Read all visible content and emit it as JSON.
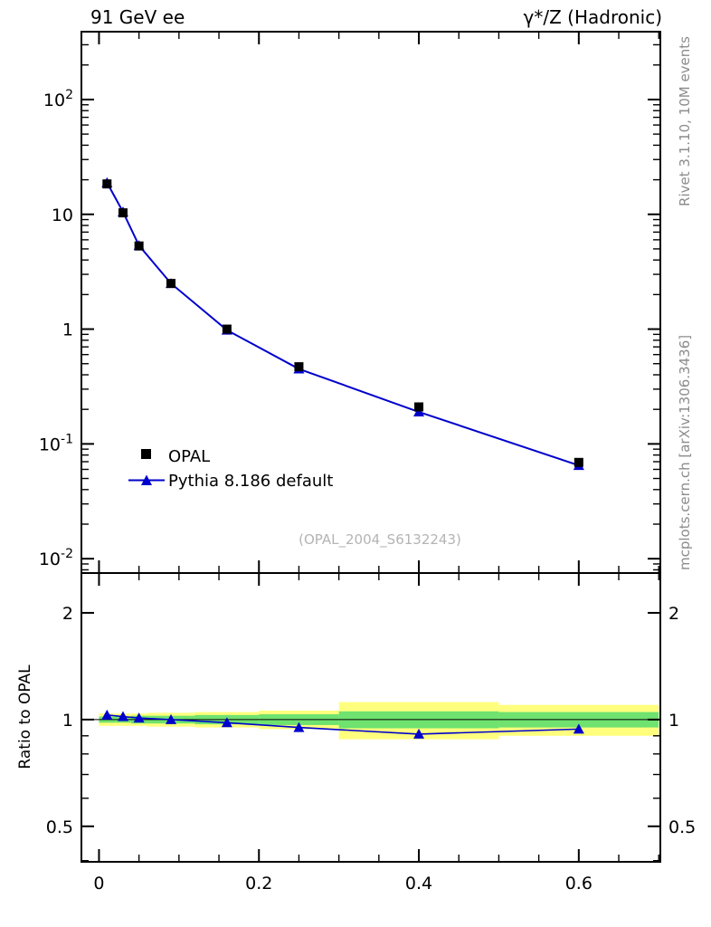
{
  "annotations": {
    "right_top": "Rivet 3.1.10,  10M events",
    "right_bottom": "mcplots.cern.ch [arXiv:1306.3436]"
  },
  "chart_data": {
    "type": "line",
    "title_left": "91 GeV ee",
    "title_right": "γ*/Z (Hadronic)",
    "watermark": "(OPAL_2004_S6132243)",
    "legend_position": "inside-left-lower",
    "colors": {
      "line_blue": "#0000cd",
      "band_yellow": "#ffff7d",
      "band_green": "#6fe26f",
      "marker_black": "#000000"
    },
    "main_panel": {
      "xscale": "linear",
      "yscale": "log",
      "xlim": [
        -0.022,
        0.702
      ],
      "ylim": [
        0.0075,
        390
      ],
      "xticks_major": [
        0,
        0.2,
        0.4,
        0.6
      ],
      "xtick_labels": [
        "0",
        "0.2",
        "0.4",
        "0.6"
      ],
      "xminor_step": 0.05,
      "yticks_major": [
        0.01,
        0.1,
        1,
        10,
        100
      ],
      "ytick_labels": [
        "10^-2",
        "10^-1",
        "1",
        "10",
        "10^2"
      ],
      "series": [
        {
          "name": "OPAL",
          "marker": "square",
          "color": "#000000",
          "line": false,
          "x": [
            0.01,
            0.03,
            0.05,
            0.09,
            0.16,
            0.25,
            0.4,
            0.6
          ],
          "y": [
            18.4,
            10.3,
            5.3,
            2.5,
            1.0,
            0.47,
            0.21,
            0.069
          ]
        },
        {
          "name": "Pythia 8.186 default",
          "marker": "triangle",
          "color": "#0000cd",
          "line": true,
          "x": [
            0.01,
            0.03,
            0.05,
            0.09,
            0.16,
            0.25,
            0.4,
            0.6
          ],
          "y": [
            18.9,
            10.5,
            5.35,
            2.5,
            0.98,
            0.45,
            0.19,
            0.065
          ]
        }
      ]
    },
    "ratio_panel": {
      "ylabel": "Ratio to OPAL",
      "yscale": "log",
      "ylim": [
        0.397,
        2.59
      ],
      "yticks_major": [
        0.5,
        1,
        2
      ],
      "ytick_labels": [
        "0.5",
        "1",
        "2"
      ],
      "yticks_minor": [
        0.4,
        0.6,
        0.7,
        0.8,
        0.9
      ],
      "ref_value": 1,
      "bands": [
        {
          "x0": 0.0,
          "x1": 0.02,
          "yellow": 0.04,
          "green": 0.02
        },
        {
          "x0": 0.02,
          "x1": 0.04,
          "yellow": 0.04,
          "green": 0.02
        },
        {
          "x0": 0.04,
          "x1": 0.06,
          "yellow": 0.04,
          "green": 0.025
        },
        {
          "x0": 0.06,
          "x1": 0.12,
          "yellow": 0.045,
          "green": 0.025
        },
        {
          "x0": 0.12,
          "x1": 0.2,
          "yellow": 0.05,
          "green": 0.03
        },
        {
          "x0": 0.2,
          "x1": 0.3,
          "yellow": 0.06,
          "green": 0.035
        },
        {
          "x0": 0.3,
          "x1": 0.5,
          "yellow": 0.12,
          "green": 0.055
        },
        {
          "x0": 0.5,
          "x1": 0.7,
          "yellow": 0.1,
          "green": 0.05
        }
      ],
      "ratio": {
        "x": [
          0.01,
          0.03,
          0.05,
          0.09,
          0.16,
          0.25,
          0.4,
          0.6
        ],
        "values": [
          1.03,
          1.02,
          1.01,
          1.0,
          0.98,
          0.95,
          0.91,
          0.94
        ]
      }
    }
  }
}
